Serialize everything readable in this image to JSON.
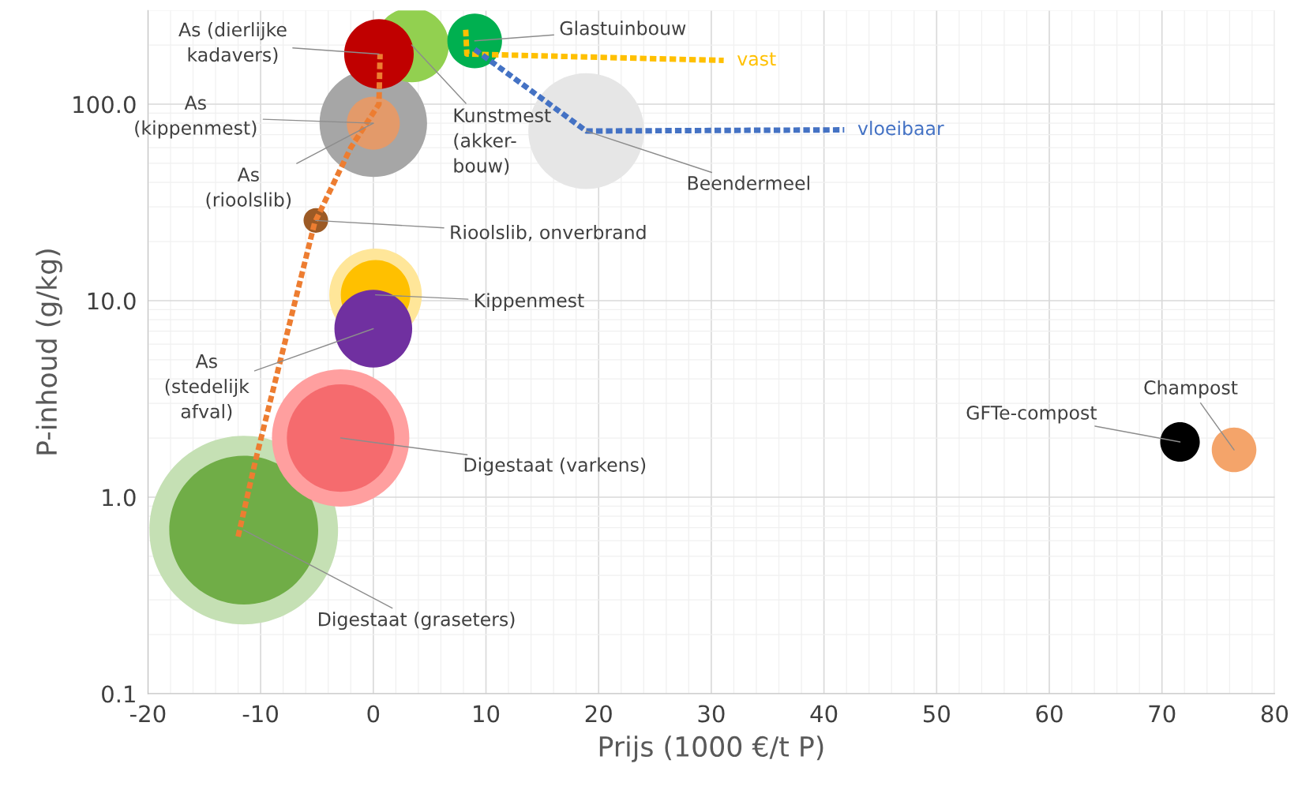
{
  "chart_data": {
    "type": "bubble",
    "xlabel": "Prijs (1000 €/t P)",
    "ylabel": "P-inhoud (g/kg)",
    "log": "y",
    "grid": true,
    "xlim": [
      -20,
      80
    ],
    "xticks": [
      -20,
      -10,
      0,
      10,
      20,
      30,
      40,
      50,
      60,
      70,
      80
    ],
    "ylim": [
      0.1,
      300
    ],
    "yticks": [
      {
        "value": 0.1,
        "label": "0.1"
      },
      {
        "value": 1,
        "label": "1.0"
      },
      {
        "value": 10,
        "label": "10.0"
      },
      {
        "value": 100,
        "label": "100.0"
      }
    ],
    "series": [
      {
        "x": [
          18.9,
          -11.5,
          -11.5,
          -2.9,
          -2.9,
          0.2,
          0.2,
          0,
          0,
          0,
          -5.1,
          3.4,
          0.5,
          9.0,
          71.6,
          76.4
        ],
        "values": [
          73,
          0.68,
          0.68,
          2.0,
          2.0,
          10.7,
          10.7,
          7.2,
          80,
          80,
          25.6,
          200,
          180,
          210,
          1.91,
          1.74
        ],
        "sizes": [
          0.377,
          1,
          0.623,
          0.53,
          0.325,
          0.241,
          0.136,
          0.17,
          0.325,
          0.079,
          0.017,
          0.156,
          0.136,
          0.084,
          0.044,
          0.056
        ],
        "colors": [
          "#e6e6e6",
          "#c5e0b4",
          "#70ad47",
          "#ff9f9f",
          "#f56b6e",
          "#ffe699",
          "#ffc000",
          "#7030a0",
          "#a6a6a6",
          "#e39a6a",
          "#9c5a25",
          "#92d050",
          "#c00000",
          "#00b050",
          "#000000",
          "#f4a46a"
        ]
      },
      {
        "type": "line",
        "color": "#ed7d31",
        "line_style": "dotted",
        "marker": "none",
        "x": [
          -12.0,
          -10.5,
          -5.2,
          -2.0,
          0.5,
          0.6
        ],
        "values": [
          0.63,
          1.5,
          25,
          60,
          100,
          180
        ]
      },
      {
        "type": "line",
        "name": "vast",
        "color": "#ffc000",
        "line_style": "dotted",
        "marker": "none",
        "x": [
          8.2,
          8.3,
          31.1
        ],
        "values": [
          239,
          180,
          167
        ]
      },
      {
        "type": "line",
        "name": "vloeibaar",
        "color": "#4472c4",
        "line_style": "dotted",
        "marker": "none",
        "x": [
          9.0,
          18.9,
          41.8
        ],
        "values": [
          190,
          73,
          74
        ]
      }
    ],
    "annotations": [
      {
        "text": "As (dierlijke\nkadavers)",
        "x": 0.5,
        "y": 180
      },
      {
        "text": "Kunstmest\n(akker-\nbouw)",
        "x": 3.4,
        "y": 200
      },
      {
        "text": "Glastuinbouw",
        "x": 9.0,
        "y": 210
      },
      {
        "text": "As\n(kippenmest)",
        "x": 0,
        "y": 80
      },
      {
        "text": "As\n(rioolslib)",
        "x": 0,
        "y": 80
      },
      {
        "text": "Beendermeel",
        "x": 18.9,
        "y": 73
      },
      {
        "text": "Rioolslib, onverbrand",
        "x": -5.1,
        "y": 25.6
      },
      {
        "text": "Kippenmest",
        "x": 0.2,
        "y": 10.7
      },
      {
        "text": "As\n(stedelijk\nafval)",
        "x": 0,
        "y": 7.2
      },
      {
        "text": "Digestaat (varkens)",
        "x": -2.9,
        "y": 2.0
      },
      {
        "text": "Digestaat (graseters)",
        "x": -11.5,
        "y": 0.68
      },
      {
        "text": "GFTe-compost",
        "x": 71.6,
        "y": 1.91
      },
      {
        "text": "Champost",
        "x": 76.4,
        "y": 1.74
      }
    ]
  }
}
